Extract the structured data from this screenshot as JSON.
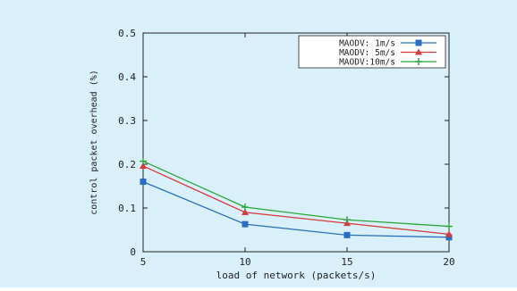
{
  "colors": {
    "background": "#d9f0fa",
    "axes": "#222222",
    "legend_bg": "#ffffff"
  },
  "chart_data": {
    "type": "line",
    "xlabel": "load of network (packets/s)",
    "ylabel": "control packet overhead (%)",
    "x": [
      5,
      10,
      15,
      20
    ],
    "xlim": [
      5,
      20
    ],
    "ylim": [
      0,
      0.5
    ],
    "x_ticks": [
      "5",
      "10",
      "15",
      "20"
    ],
    "y_ticks": [
      "0",
      "0.1",
      "0.2",
      "0.3",
      "0.4",
      "0.5"
    ],
    "grid": false,
    "legend_position": "top-right",
    "series": [
      {
        "name": "MAODV: 1m/s",
        "color": "#2a6fbf",
        "marker": "square",
        "values": [
          0.16,
          0.063,
          0.038,
          0.033
        ]
      },
      {
        "name": "MAODV: 5m/s",
        "color": "#d63a3a",
        "marker": "triangle",
        "values": [
          0.196,
          0.09,
          0.065,
          0.04
        ]
      },
      {
        "name": "MAODV:10m/s",
        "color": "#2aa63a",
        "marker": "plus",
        "values": [
          0.207,
          0.102,
          0.073,
          0.058
        ]
      }
    ]
  }
}
